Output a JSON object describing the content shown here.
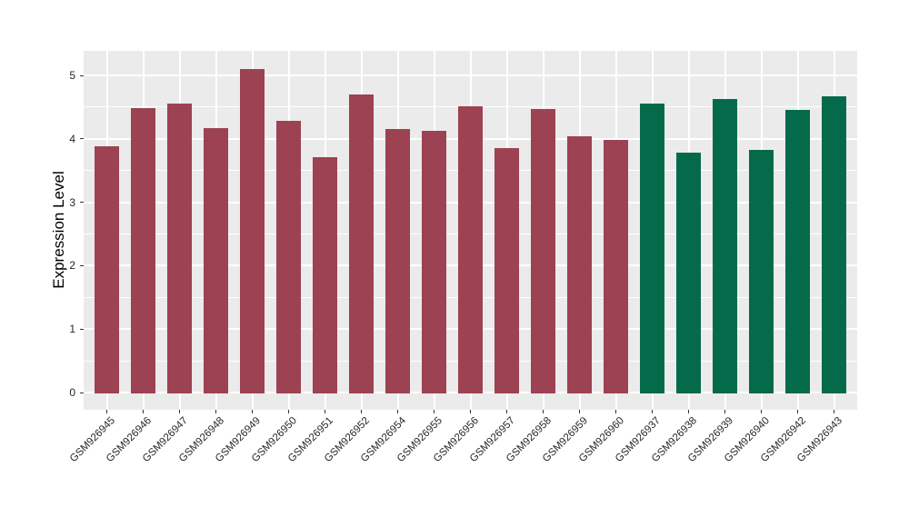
{
  "figure": {
    "background": "#FFFFFF",
    "panel_background": "#EBEBEB",
    "gridline_color": "#FFFFFF"
  },
  "chart_data": {
    "type": "bar",
    "title": "",
    "xlabel": "",
    "ylabel": "Expression Level",
    "y_ticks": [
      0,
      1,
      2,
      3,
      4,
      5
    ],
    "y_minor_step": 0.5,
    "ylim": [
      -0.27,
      5.39
    ],
    "grid": "major and minor horizontal white lines, vertical white line at each category, on gray panel",
    "legend": null,
    "group_colors": {
      "red": "#9C4252",
      "green": "#046A4A"
    },
    "bars": [
      {
        "label": "GSM926945",
        "value": 3.9,
        "group": "red"
      },
      {
        "label": "GSM926946",
        "value": 4.5,
        "group": "red"
      },
      {
        "label": "GSM926947",
        "value": 4.57,
        "group": "red"
      },
      {
        "label": "GSM926948",
        "value": 4.18,
        "group": "red"
      },
      {
        "label": "GSM926949",
        "value": 5.12,
        "group": "red"
      },
      {
        "label": "GSM926950",
        "value": 4.3,
        "group": "red"
      },
      {
        "label": "GSM926951",
        "value": 3.72,
        "group": "red"
      },
      {
        "label": "GSM926952",
        "value": 4.72,
        "group": "red"
      },
      {
        "label": "GSM926954",
        "value": 4.17,
        "group": "red"
      },
      {
        "label": "GSM926955",
        "value": 4.14,
        "group": "red"
      },
      {
        "label": "GSM926956",
        "value": 4.53,
        "group": "red"
      },
      {
        "label": "GSM926957",
        "value": 3.87,
        "group": "red"
      },
      {
        "label": "GSM926958",
        "value": 4.48,
        "group": "red"
      },
      {
        "label": "GSM926959",
        "value": 4.05,
        "group": "red"
      },
      {
        "label": "GSM926960",
        "value": 4.0,
        "group": "red"
      },
      {
        "label": "GSM926937",
        "value": 4.57,
        "group": "green"
      },
      {
        "label": "GSM926938",
        "value": 3.8,
        "group": "green"
      },
      {
        "label": "GSM926939",
        "value": 4.64,
        "group": "green"
      },
      {
        "label": "GSM926940",
        "value": 3.84,
        "group": "green"
      },
      {
        "label": "GSM926942",
        "value": 4.47,
        "group": "green"
      },
      {
        "label": "GSM926943",
        "value": 4.69,
        "group": "green"
      }
    ]
  }
}
